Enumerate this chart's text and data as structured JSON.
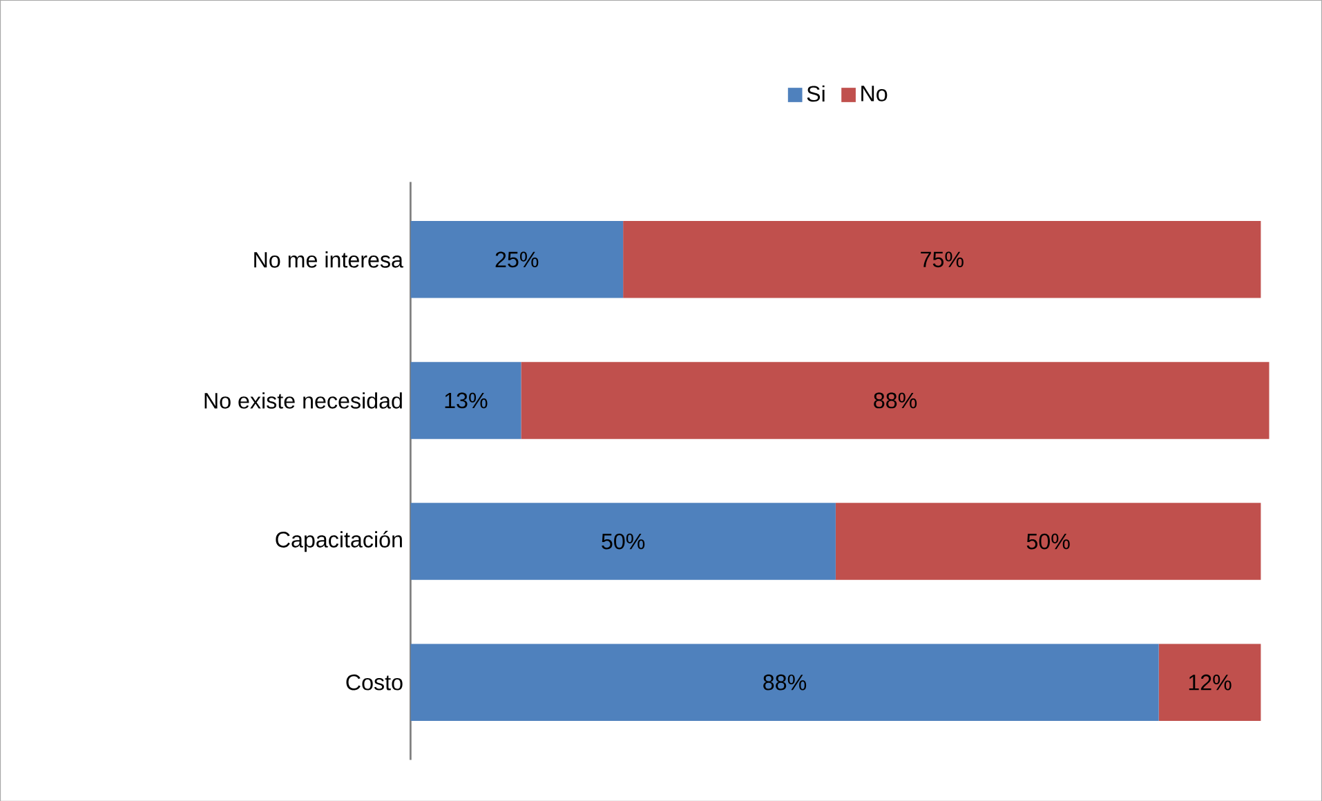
{
  "chart_data": {
    "type": "bar",
    "orientation": "horizontal",
    "stacked": true,
    "legend": "top",
    "categories": [
      "No me interesa",
      "No existe necesidad",
      "Capacitación",
      "Costo"
    ],
    "series": [
      {
        "name": "Si",
        "color": "#4f81bd",
        "values": [
          25,
          13,
          50,
          88
        ],
        "value_labels": [
          "25%",
          "13%",
          "50%",
          "88%"
        ]
      },
      {
        "name": "No",
        "color": "#c0504d",
        "values": [
          75,
          88,
          50,
          12
        ],
        "value_labels": [
          "75%",
          "88%",
          "50%",
          "12%"
        ]
      }
    ]
  }
}
